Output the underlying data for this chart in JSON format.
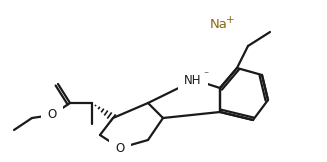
{
  "bg_color": "#ffffff",
  "line_color": "#1a1a1a",
  "bond_lw": 1.6,
  "Na_color": "#8B6914",
  "Na_text": "Na",
  "Na_superscript": "+",
  "NH_text": "NH",
  "NH_superscript": "⁻",
  "O_text": "O",
  "figsize": [
    3.27,
    1.62
  ],
  "dpi": 100
}
